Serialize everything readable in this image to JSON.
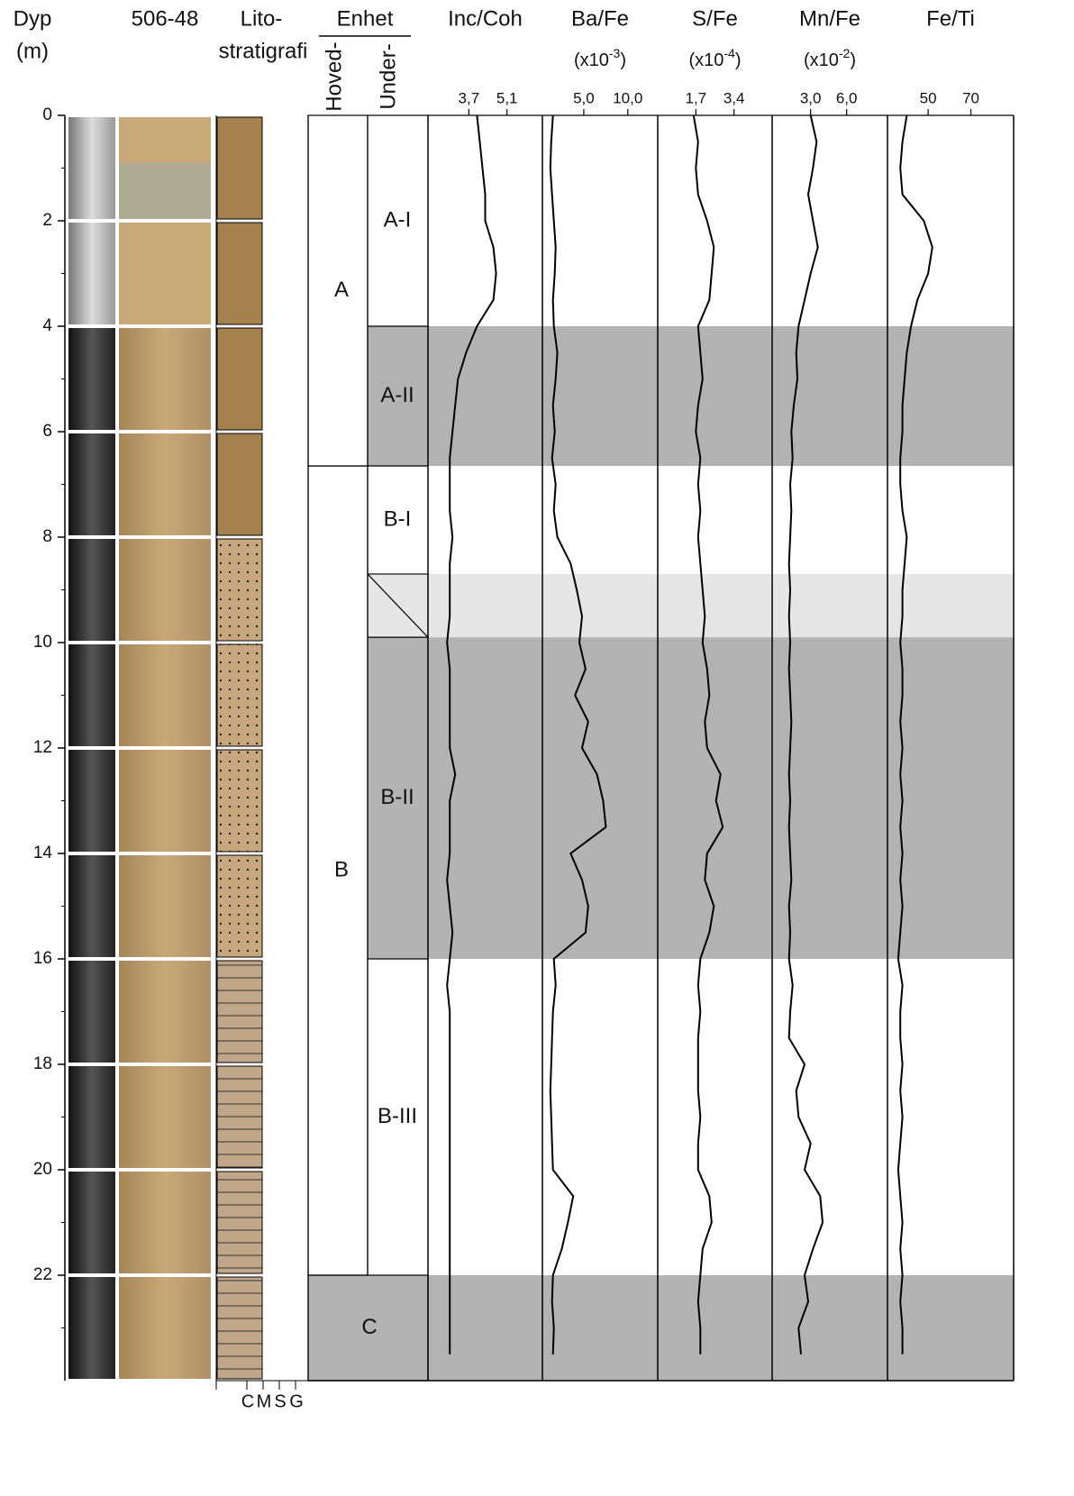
{
  "depth_axis": {
    "label": [
      "Dyp",
      "(m)"
    ],
    "ylim": [
      0,
      24
    ],
    "yticks": [
      0,
      2,
      4,
      6,
      8,
      10,
      12,
      14,
      16,
      18,
      20,
      22
    ]
  },
  "core_label": "506-48",
  "litho": {
    "title": [
      "Lito-",
      "stratigrafi"
    ],
    "grain_sizes": [
      "C",
      "M",
      "S",
      "G"
    ]
  },
  "units": {
    "title": "Enhet",
    "main_header": "Hoved-",
    "sub_header": "Under-",
    "main": [
      {
        "label": "A",
        "top": 0,
        "bottom": 6.65
      },
      {
        "label": "B",
        "top": 6.65,
        "bottom": 22
      },
      {
        "label": "C",
        "top": 22,
        "bottom": 24,
        "color": "#b3b3b3"
      }
    ],
    "sub": [
      {
        "label": "A-I",
        "top": 0,
        "bottom": 4
      },
      {
        "label": "A-II",
        "top": 4,
        "bottom": 6.65,
        "color": "#b3b3b3"
      },
      {
        "label": "B-I",
        "top": 6.65,
        "bottom": 8.7
      },
      {
        "label": null,
        "top": 8.7,
        "bottom": 9.9,
        "color": "#e6e6e6"
      },
      {
        "label": "B-II",
        "top": 9.9,
        "bottom": 16,
        "color": "#b3b3b3"
      },
      {
        "label": "B-III",
        "top": 16,
        "bottom": 22
      }
    ]
  },
  "chart_data": [
    {
      "type": "line",
      "title": "Inc/Coh",
      "horizontal": true,
      "color": "#000000",
      "x": [
        0,
        0.5,
        1,
        1.5,
        2,
        2.5,
        3,
        3.5,
        4,
        4.5,
        5,
        5.5,
        6,
        6.5,
        7,
        7.5,
        8,
        8.5,
        9,
        9.5,
        10,
        10.5,
        11,
        11.5,
        12,
        12.5,
        13,
        13.5,
        14,
        14.5,
        15,
        15.5,
        16,
        16.5,
        17,
        17.5,
        18,
        18.5,
        19,
        19.5,
        20,
        20.5,
        21,
        21.5,
        22,
        22.5,
        23,
        23.5
      ],
      "xlim": [
        0,
        24
      ],
      "values": [
        4.0,
        4.1,
        4.2,
        4.3,
        4.3,
        4.6,
        4.7,
        4.6,
        4.0,
        3.6,
        3.3,
        3.2,
        3.1,
        3.0,
        3.0,
        3.0,
        3.1,
        3.0,
        3.0,
        3.0,
        2.9,
        3.0,
        3.0,
        3.0,
        3.0,
        3.2,
        3.0,
        3.0,
        3.0,
        2.9,
        3.0,
        3.1,
        3.0,
        2.9,
        3.0,
        3.0,
        3.0,
        3.0,
        3.0,
        3.0,
        3.0,
        3.0,
        3.0,
        3.0,
        3.0,
        3.0,
        3.0,
        3.0
      ],
      "ylim": [
        2.2,
        6.4
      ],
      "yticks": [
        {
          "value": 3.7,
          "label": "3,7"
        },
        {
          "value": 5.1,
          "label": "5,1"
        }
      ]
    },
    {
      "type": "line",
      "title": "Ba/Fe",
      "subtitle_parts": [
        "(x10",
        "-3",
        ")"
      ],
      "horizontal": true,
      "color": "#000000",
      "x": [
        0,
        0.5,
        1,
        1.5,
        2,
        2.5,
        3,
        3.5,
        4,
        4.5,
        5,
        5.5,
        6,
        6.5,
        7,
        7.5,
        8,
        8.5,
        9,
        9.5,
        10,
        10.5,
        11,
        11.5,
        12,
        12.5,
        13,
        13.5,
        14,
        14.5,
        15,
        15.5,
        16,
        16.5,
        17,
        17.5,
        18,
        18.5,
        19,
        19.5,
        20,
        20.5,
        21,
        21.5,
        22,
        22.5,
        23,
        23.5
      ],
      "xlim": [
        0,
        24
      ],
      "values": [
        1.5,
        1.3,
        1.2,
        1.4,
        1.6,
        1.8,
        1.7,
        1.5,
        1.6,
        2.0,
        1.8,
        1.5,
        1.7,
        1.4,
        1.8,
        1.6,
        2.0,
        3.5,
        4.2,
        4.8,
        4.5,
        5.2,
        4.0,
        5.5,
        4.8,
        6.5,
        7.2,
        7.5,
        3.5,
        4.8,
        5.5,
        5.2,
        1.6,
        1.8,
        1.5,
        1.4,
        1.3,
        1.2,
        1.3,
        1.4,
        1.5,
        3.8,
        3.2,
        2.5,
        1.5,
        1.4,
        1.6,
        1.5
      ],
      "ylim": [
        0.3,
        13.4
      ],
      "yticks": [
        {
          "value": 5.0,
          "label": "5,0"
        },
        {
          "value": 10.0,
          "label": "10,0"
        }
      ]
    },
    {
      "type": "line",
      "title": "S/Fe",
      "subtitle_parts": [
        "(x10",
        "-4",
        ")"
      ],
      "horizontal": true,
      "color": "#000000",
      "x": [
        0,
        0.5,
        1,
        1.5,
        2,
        2.5,
        3,
        3.5,
        4,
        4.5,
        5,
        5.5,
        6,
        6.5,
        7,
        7.5,
        8,
        8.5,
        9,
        9.5,
        10,
        10.5,
        11,
        11.5,
        12,
        12.5,
        13,
        13.5,
        14,
        14.5,
        15,
        15.5,
        16,
        16.5,
        17,
        17.5,
        18,
        18.5,
        19,
        19.5,
        20,
        20.5,
        21,
        21.5,
        22,
        22.5,
        23,
        23.5
      ],
      "xlim": [
        0,
        24
      ],
      "values": [
        1.6,
        1.8,
        1.7,
        1.8,
        2.2,
        2.5,
        2.4,
        2.3,
        1.8,
        1.9,
        2.0,
        1.8,
        1.7,
        1.9,
        1.8,
        1.9,
        1.8,
        1.9,
        2.0,
        2.1,
        2.0,
        2.2,
        2.3,
        2.1,
        2.2,
        2.8,
        2.6,
        2.9,
        2.2,
        2.1,
        2.5,
        2.3,
        1.9,
        1.8,
        1.9,
        1.8,
        1.8,
        1.8,
        1.9,
        1.8,
        1.8,
        2.3,
        2.4,
        2.0,
        1.9,
        1.8,
        1.9,
        1.9
      ],
      "ylim": [
        0,
        5.1
      ],
      "yticks": [
        {
          "value": 1.7,
          "label": "1,7"
        },
        {
          "value": 3.4,
          "label": "3,4"
        }
      ]
    },
    {
      "type": "line",
      "title": "Mn/Fe",
      "subtitle_parts": [
        "(x10",
        "-2",
        ")"
      ],
      "horizontal": true,
      "color": "#000000",
      "x": [
        0,
        0.5,
        1,
        1.5,
        2,
        2.5,
        3,
        3.5,
        4,
        4.5,
        5,
        5.5,
        6,
        6.5,
        7,
        7.5,
        8,
        8.5,
        9,
        9.5,
        10,
        10.5,
        11,
        11.5,
        12,
        12.5,
        13,
        13.5,
        14,
        14.5,
        15,
        15.5,
        16,
        16.5,
        17,
        17.5,
        18,
        18.5,
        19,
        19.5,
        20,
        20.5,
        21,
        21.5,
        22,
        22.5,
        23,
        23.5
      ],
      "xlim": [
        0,
        24
      ],
      "values": [
        3.0,
        3.5,
        3.2,
        2.8,
        3.2,
        3.6,
        3.0,
        2.5,
        2.0,
        1.8,
        1.9,
        1.6,
        1.4,
        1.5,
        1.3,
        1.4,
        1.3,
        1.2,
        1.3,
        1.2,
        1.3,
        1.2,
        1.3,
        1.4,
        1.3,
        1.2,
        1.3,
        1.2,
        1.3,
        1.4,
        1.2,
        1.3,
        1.2,
        1.5,
        1.3,
        1.2,
        2.5,
        1.8,
        2.0,
        3.0,
        2.5,
        3.8,
        4.0,
        3.2,
        2.5,
        2.8,
        2.0,
        2.2
      ],
      "ylim": [
        -0.2,
        9.4
      ],
      "yticks": [
        {
          "value": 3.0,
          "label": "3,0"
        },
        {
          "value": 6.0,
          "label": "6,0"
        }
      ]
    },
    {
      "type": "line",
      "title": "Fe/Ti",
      "horizontal": true,
      "color": "#000000",
      "x": [
        0,
        0.5,
        1,
        1.5,
        2,
        2.5,
        3,
        3.5,
        4,
        4.5,
        5,
        5.5,
        6,
        6.5,
        7,
        7.5,
        8,
        8.5,
        9,
        9.5,
        10,
        10.5,
        11,
        11.5,
        12,
        12.5,
        13,
        13.5,
        14,
        14.5,
        15,
        15.5,
        16,
        16.5,
        17,
        17.5,
        18,
        18.5,
        19,
        19.5,
        20,
        20.5,
        21,
        21.5,
        22,
        22.5,
        23,
        23.5
      ],
      "xlim": [
        0,
        24
      ],
      "values": [
        40,
        38,
        37,
        38,
        48,
        52,
        50,
        45,
        42,
        40,
        39,
        38,
        38,
        37,
        37,
        38,
        40,
        39,
        38,
        38,
        37,
        38,
        38,
        37,
        38,
        37,
        38,
        37,
        38,
        37,
        38,
        37,
        36,
        38,
        37,
        37,
        38,
        37,
        38,
        37,
        36,
        37,
        38,
        37,
        38,
        37,
        38,
        38
      ],
      "ylim": [
        31,
        90
      ],
      "yticks": [
        50,
        70
      ]
    }
  ]
}
